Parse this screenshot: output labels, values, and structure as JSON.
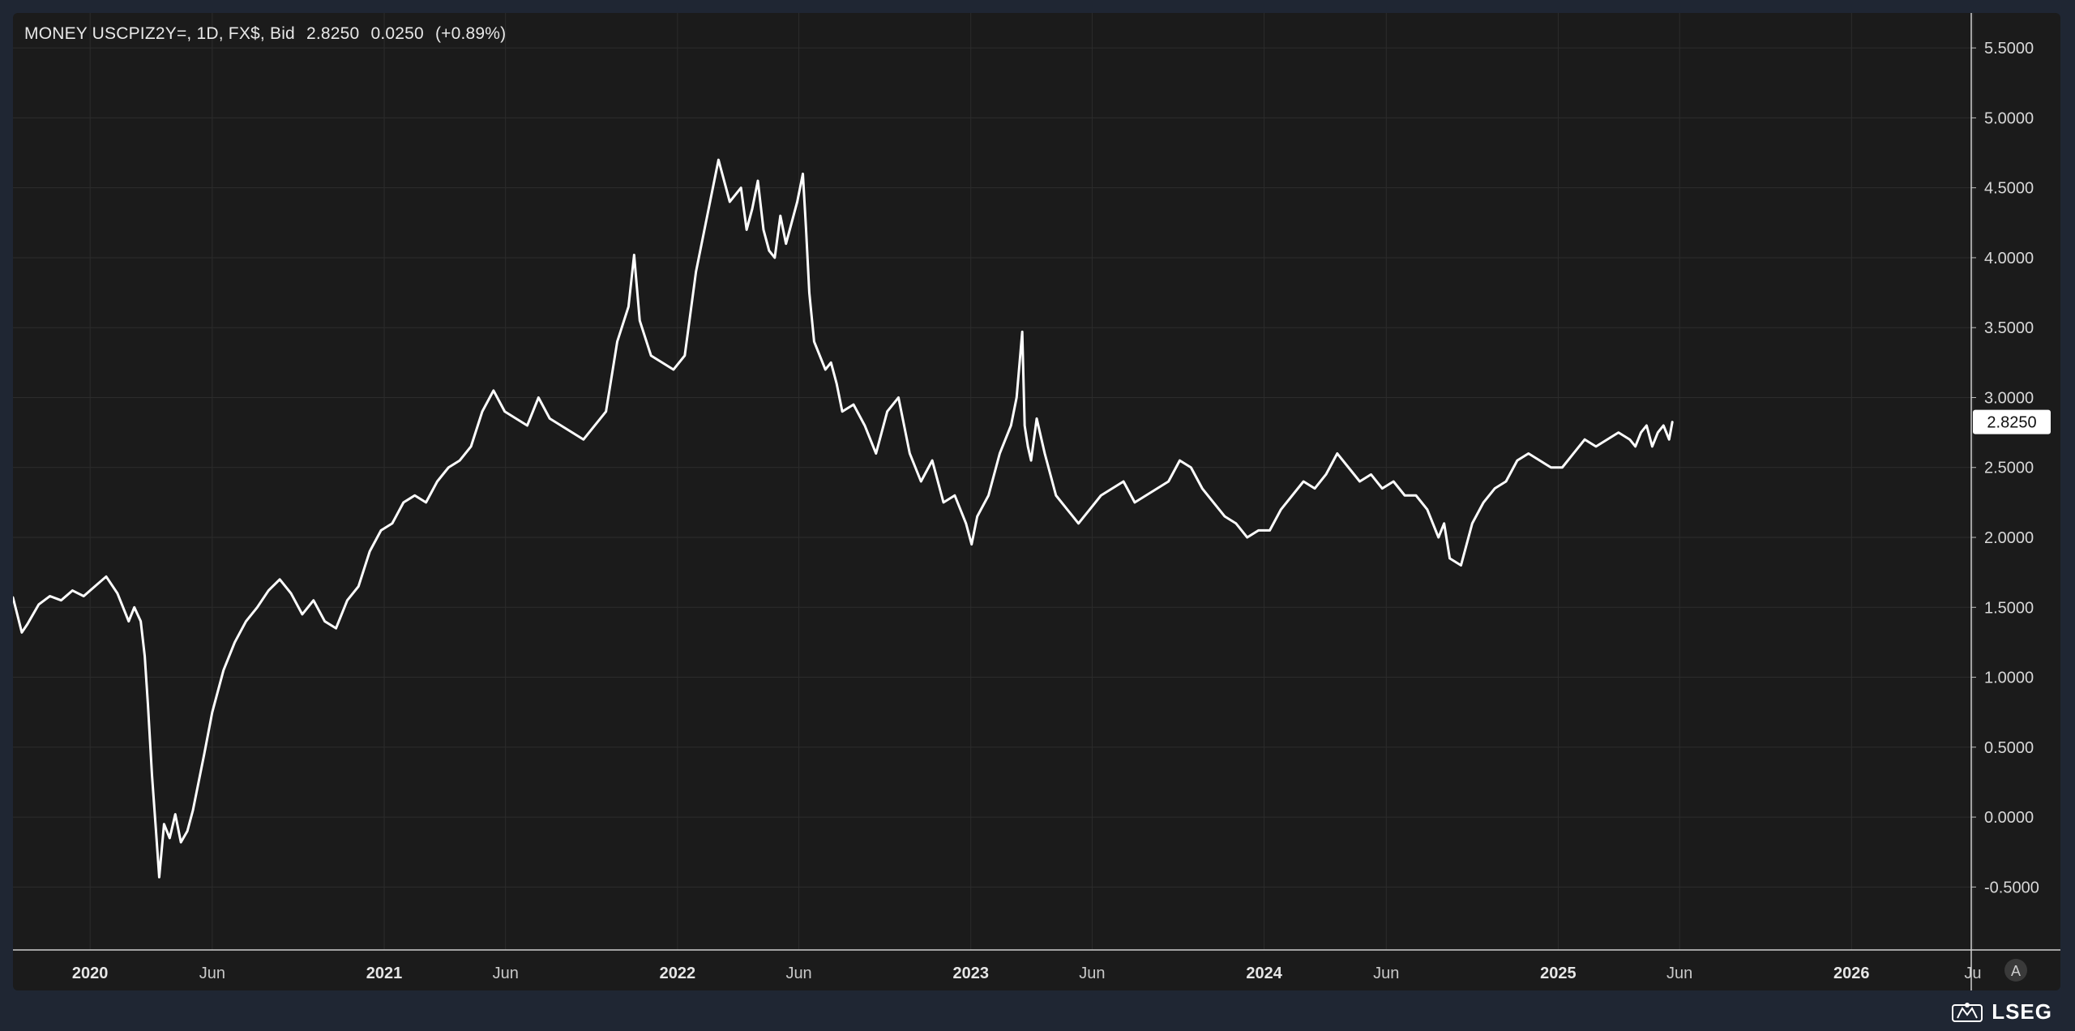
{
  "header": {
    "symbol_text": "MONEY USCPIZ2Y=, 1D, FX$, Bid",
    "last": "2.8250",
    "change": "0.0250",
    "change_pct": "(+0.89%)"
  },
  "price_tag": "2.8250",
  "auto_scale_label": "A",
  "brand": "LSEG",
  "colors": {
    "background": "#1b1b1b",
    "line": "#ffffff",
    "grid": "#2c2c2c",
    "axis_text": "#d8d8d8",
    "page": "#1f2633"
  },
  "chart_data": {
    "type": "line",
    "title": "",
    "xlabel": "",
    "ylabel": "",
    "ylim": [
      -0.95,
      5.75
    ],
    "xlim": [
      "2019-09-27",
      "2026-05-30"
    ],
    "y_ticks": [
      "5.5000",
      "5.0000",
      "4.5000",
      "4.0000",
      "3.5000",
      "3.0000",
      "2.5000",
      "2.0000",
      "1.5000",
      "1.0000",
      "0.5000",
      "0.0000",
      "-0.5000"
    ],
    "x_ticks": [
      {
        "date": "2020-01-01",
        "label": "2020",
        "major": true
      },
      {
        "date": "2020-06-01",
        "label": "Jun",
        "major": false
      },
      {
        "date": "2021-01-01",
        "label": "2021",
        "major": true
      },
      {
        "date": "2021-06-01",
        "label": "Jun",
        "major": false
      },
      {
        "date": "2022-01-01",
        "label": "2022",
        "major": true
      },
      {
        "date": "2022-06-01",
        "label": "Jun",
        "major": false
      },
      {
        "date": "2023-01-01",
        "label": "2023",
        "major": true
      },
      {
        "date": "2023-06-01",
        "label": "Jun",
        "major": false
      },
      {
        "date": "2024-01-01",
        "label": "2024",
        "major": true
      },
      {
        "date": "2024-06-01",
        "label": "Jun",
        "major": false
      },
      {
        "date": "2025-01-01",
        "label": "2025",
        "major": true
      },
      {
        "date": "2025-06-01",
        "label": "Jun",
        "major": false
      },
      {
        "date": "2026-01-01",
        "label": "2026",
        "major": true
      },
      {
        "date": "2026-06-01",
        "label": "Ju",
        "major": false
      }
    ],
    "grid": true,
    "series": [
      {
        "x": [
          "2019-09-27",
          "2019-10-01",
          "2019-10-08",
          "2019-10-15",
          "2019-10-29",
          "2019-11-12",
          "2019-11-26",
          "2019-12-10",
          "2019-12-24",
          "2020-01-07",
          "2020-01-21",
          "2020-02-04",
          "2020-02-18",
          "2020-02-25",
          "2020-03-04",
          "2020-03-09",
          "2020-03-13",
          "2020-03-18",
          "2020-03-23",
          "2020-03-27",
          "2020-04-02",
          "2020-04-09",
          "2020-04-16",
          "2020-04-23",
          "2020-05-01",
          "2020-05-08",
          "2020-05-15",
          "2020-05-22",
          "2020-06-01",
          "2020-06-15",
          "2020-06-29",
          "2020-07-13",
          "2020-07-27",
          "2020-08-10",
          "2020-08-24",
          "2020-09-07",
          "2020-09-21",
          "2020-10-05",
          "2020-10-19",
          "2020-11-02",
          "2020-11-16",
          "2020-11-30",
          "2020-12-14",
          "2020-12-28",
          "2021-01-11",
          "2021-01-25",
          "2021-02-08",
          "2021-02-22",
          "2021-03-08",
          "2021-03-22",
          "2021-04-05",
          "2021-04-19",
          "2021-05-03",
          "2021-05-17",
          "2021-05-31",
          "2021-06-14",
          "2021-06-28",
          "2021-07-12",
          "2021-07-26",
          "2021-08-09",
          "2021-08-23",
          "2021-09-06",
          "2021-09-20",
          "2021-10-04",
          "2021-10-18",
          "2021-11-01",
          "2021-11-08",
          "2021-11-15",
          "2021-11-29",
          "2021-12-13",
          "2021-12-27",
          "2022-01-10",
          "2022-01-24",
          "2022-02-07",
          "2022-02-21",
          "2022-03-07",
          "2022-03-21",
          "2022-03-28",
          "2022-04-04",
          "2022-04-11",
          "2022-04-18",
          "2022-04-25",
          "2022-05-02",
          "2022-05-09",
          "2022-05-16",
          "2022-05-23",
          "2022-05-30",
          "2022-06-06",
          "2022-06-10",
          "2022-06-14",
          "2022-06-20",
          "2022-06-27",
          "2022-07-04",
          "2022-07-11",
          "2022-07-18",
          "2022-07-25",
          "2022-08-08",
          "2022-08-22",
          "2022-09-05",
          "2022-09-19",
          "2022-10-03",
          "2022-10-17",
          "2022-10-31",
          "2022-11-14",
          "2022-11-28",
          "2022-12-12",
          "2022-12-26",
          "2023-01-02",
          "2023-01-09",
          "2023-01-23",
          "2023-02-06",
          "2023-02-20",
          "2023-02-27",
          "2023-03-06",
          "2023-03-09",
          "2023-03-13",
          "2023-03-17",
          "2023-03-24",
          "2023-04-03",
          "2023-04-17",
          "2023-05-01",
          "2023-05-15",
          "2023-05-29",
          "2023-06-12",
          "2023-06-26",
          "2023-07-10",
          "2023-07-24",
          "2023-08-07",
          "2023-08-21",
          "2023-09-04",
          "2023-09-18",
          "2023-10-02",
          "2023-10-16",
          "2023-10-30",
          "2023-11-13",
          "2023-11-27",
          "2023-12-11",
          "2023-12-25",
          "2024-01-08",
          "2024-01-22",
          "2024-02-05",
          "2024-02-19",
          "2024-03-04",
          "2024-03-18",
          "2024-04-01",
          "2024-04-15",
          "2024-04-29",
          "2024-05-13",
          "2024-05-27",
          "2024-06-10",
          "2024-06-24",
          "2024-07-08",
          "2024-07-22",
          "2024-08-05",
          "2024-08-12",
          "2024-08-19",
          "2024-09-02",
          "2024-09-16",
          "2024-09-30",
          "2024-10-14",
          "2024-10-28",
          "2024-11-11",
          "2024-11-25",
          "2024-12-09",
          "2024-12-23",
          "2025-01-06",
          "2025-01-20",
          "2025-02-03",
          "2025-02-17",
          "2025-03-03",
          "2025-03-17",
          "2025-03-31",
          "2025-04-07",
          "2025-04-14",
          "2025-04-21",
          "2025-04-28",
          "2025-05-05",
          "2025-05-12",
          "2025-05-19",
          "2025-05-23"
        ],
        "y": [
          1.57,
          1.48,
          1.32,
          1.38,
          1.52,
          1.58,
          1.55,
          1.62,
          1.58,
          1.65,
          1.72,
          1.6,
          1.4,
          1.5,
          1.4,
          1.15,
          0.8,
          0.3,
          -0.1,
          -0.43,
          -0.05,
          -0.15,
          0.02,
          -0.18,
          -0.1,
          0.05,
          0.25,
          0.45,
          0.75,
          1.05,
          1.25,
          1.4,
          1.5,
          1.62,
          1.7,
          1.6,
          1.45,
          1.55,
          1.4,
          1.35,
          1.55,
          1.65,
          1.9,
          2.05,
          2.1,
          2.25,
          2.3,
          2.25,
          2.4,
          2.5,
          2.55,
          2.65,
          2.9,
          3.05,
          2.9,
          2.85,
          2.8,
          3.0,
          2.85,
          2.8,
          2.75,
          2.7,
          2.8,
          2.9,
          3.4,
          3.65,
          4.02,
          3.55,
          3.3,
          3.25,
          3.2,
          3.3,
          3.9,
          4.3,
          4.7,
          4.4,
          4.5,
          4.2,
          4.35,
          4.55,
          4.2,
          4.05,
          4.0,
          4.3,
          4.1,
          4.25,
          4.4,
          4.6,
          4.2,
          3.75,
          3.4,
          3.3,
          3.2,
          3.25,
          3.1,
          2.9,
          2.95,
          2.8,
          2.6,
          2.9,
          3.0,
          2.6,
          2.4,
          2.55,
          2.25,
          2.3,
          2.1,
          1.95,
          2.15,
          2.3,
          2.6,
          2.8,
          3.0,
          3.47,
          2.8,
          2.65,
          2.55,
          2.85,
          2.6,
          2.3,
          2.2,
          2.1,
          2.2,
          2.3,
          2.35,
          2.4,
          2.25,
          2.3,
          2.35,
          2.4,
          2.55,
          2.5,
          2.35,
          2.25,
          2.15,
          2.1,
          2.0,
          2.05,
          2.05,
          2.2,
          2.3,
          2.4,
          2.35,
          2.45,
          2.6,
          2.5,
          2.4,
          2.45,
          2.35,
          2.4,
          2.3,
          2.3,
          2.2,
          2.0,
          2.1,
          1.85,
          1.8,
          2.1,
          2.25,
          2.35,
          2.4,
          2.55,
          2.6,
          2.55,
          2.5,
          2.5,
          2.6,
          2.7,
          2.65,
          2.7,
          2.75,
          2.7,
          2.65,
          2.75,
          2.8,
          2.65,
          2.75,
          2.8,
          2.7,
          2.825
        ]
      }
    ]
  }
}
